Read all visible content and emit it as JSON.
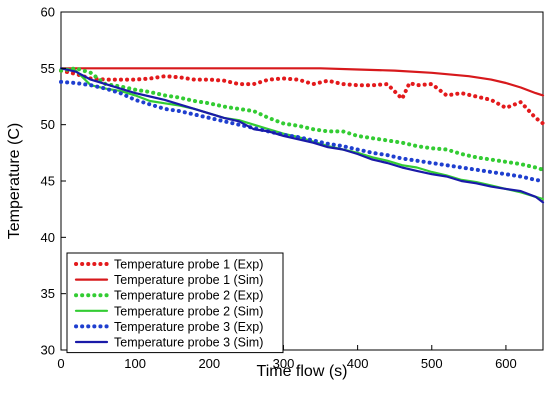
{
  "chart_data": {
    "type": "line",
    "title": "",
    "xlabel": "Time flow (s)",
    "ylabel": "Temperature (C)",
    "xlim": [
      0,
      650
    ],
    "ylim": [
      30,
      60
    ],
    "xticks": [
      0,
      100,
      200,
      300,
      400,
      500,
      600
    ],
    "yticks": [
      30,
      35,
      40,
      45,
      50,
      55,
      60
    ],
    "grid": false,
    "legend_position": "bottom-left",
    "series": [
      {
        "name": "Temperature probe 1 (Exp)",
        "color": "#e31a1c",
        "style": "dotted",
        "x": [
          0,
          20,
          40,
          60,
          80,
          100,
          120,
          140,
          160,
          180,
          200,
          220,
          240,
          260,
          280,
          300,
          320,
          340,
          360,
          380,
          400,
          420,
          440,
          460,
          470,
          480,
          500,
          520,
          540,
          560,
          580,
          600,
          620,
          640,
          650
        ],
        "y": [
          54.8,
          54.5,
          54.1,
          54.0,
          54.0,
          54.0,
          54.1,
          54.3,
          54.2,
          54.0,
          54.0,
          53.9,
          53.6,
          53.6,
          54.0,
          54.1,
          54.0,
          53.6,
          53.9,
          53.6,
          53.5,
          53.5,
          53.6,
          52.3,
          53.7,
          53.5,
          53.6,
          52.6,
          52.8,
          52.5,
          52.2,
          51.5,
          52.0,
          50.6,
          50.1
        ]
      },
      {
        "name": "Temperature probe 1 (Sim)",
        "color": "#d7191c",
        "style": "solid",
        "x": [
          0,
          100,
          200,
          300,
          350,
          400,
          450,
          500,
          550,
          580,
          600,
          620,
          640,
          650
        ],
        "y": [
          55.0,
          55.0,
          55.0,
          55.0,
          55.0,
          54.9,
          54.8,
          54.6,
          54.3,
          54.0,
          53.7,
          53.3,
          52.8,
          52.6
        ]
      },
      {
        "name": "Temperature probe 2 (Exp)",
        "color": "#33cc33",
        "style": "dotted",
        "x": [
          0,
          20,
          40,
          60,
          80,
          100,
          120,
          140,
          160,
          180,
          200,
          220,
          240,
          260,
          280,
          300,
          320,
          340,
          360,
          380,
          400,
          420,
          440,
          460,
          480,
          500,
          520,
          540,
          560,
          580,
          600,
          620,
          640,
          650
        ],
        "y": [
          54.8,
          55.0,
          54.6,
          53.6,
          53.4,
          53.1,
          52.9,
          52.6,
          52.4,
          52.1,
          51.9,
          51.6,
          51.4,
          51.2,
          50.6,
          50.1,
          49.9,
          49.6,
          49.4,
          49.4,
          49.0,
          48.8,
          48.6,
          48.4,
          48.1,
          47.9,
          47.8,
          47.4,
          47.1,
          46.9,
          46.7,
          46.5,
          46.2,
          46.0
        ]
      },
      {
        "name": "Temperature probe 2 (Sim)",
        "color": "#33cc33",
        "style": "solid",
        "x": [
          0,
          20,
          40,
          60,
          80,
          100,
          120,
          140,
          160,
          180,
          200,
          220,
          240,
          260,
          280,
          300,
          320,
          340,
          360,
          380,
          400,
          420,
          440,
          460,
          480,
          500,
          520,
          540,
          560,
          580,
          600,
          620,
          640,
          650
        ],
        "y": [
          55.0,
          54.8,
          53.5,
          53.2,
          53.0,
          52.6,
          52.1,
          51.9,
          51.7,
          51.4,
          51.0,
          50.6,
          50.4,
          50.0,
          49.6,
          49.2,
          48.9,
          48.5,
          48.1,
          47.8,
          47.5,
          47.1,
          46.8,
          46.4,
          46.2,
          45.8,
          45.5,
          45.1,
          44.9,
          44.6,
          44.3,
          44.0,
          43.6,
          43.4
        ]
      },
      {
        "name": "Temperature probe 3 (Exp)",
        "color": "#1f3fcf",
        "style": "dotted",
        "x": [
          0,
          20,
          40,
          60,
          80,
          100,
          120,
          140,
          160,
          180,
          200,
          220,
          240,
          260,
          280,
          300,
          320,
          340,
          360,
          380,
          400,
          420,
          440,
          460,
          480,
          500,
          520,
          540,
          560,
          580,
          600,
          620,
          640,
          650
        ],
        "y": [
          53.8,
          53.7,
          53.5,
          53.2,
          52.8,
          52.2,
          51.8,
          51.4,
          51.2,
          50.9,
          50.6,
          50.3,
          50.0,
          49.7,
          49.4,
          49.1,
          48.9,
          48.6,
          48.3,
          48.1,
          47.8,
          47.5,
          47.3,
          47.0,
          46.8,
          46.6,
          46.4,
          46.2,
          46.0,
          45.8,
          45.6,
          45.4,
          45.1,
          45.0
        ]
      },
      {
        "name": "Temperature probe 3 (Sim)",
        "color": "#1a1aa8",
        "style": "solid",
        "x": [
          0,
          20,
          40,
          60,
          80,
          100,
          120,
          140,
          160,
          180,
          200,
          220,
          240,
          260,
          280,
          300,
          320,
          340,
          360,
          380,
          400,
          420,
          440,
          460,
          480,
          500,
          520,
          540,
          560,
          580,
          600,
          620,
          640,
          650
        ],
        "y": [
          55.0,
          54.7,
          54.0,
          53.6,
          53.2,
          52.8,
          52.5,
          52.2,
          51.8,
          51.4,
          51.0,
          50.6,
          50.3,
          49.6,
          49.4,
          49.0,
          48.7,
          48.4,
          48.0,
          47.8,
          47.4,
          46.9,
          46.6,
          46.2,
          45.9,
          45.6,
          45.4,
          45.0,
          44.8,
          44.5,
          44.3,
          44.1,
          43.6,
          43.1
        ]
      }
    ]
  }
}
